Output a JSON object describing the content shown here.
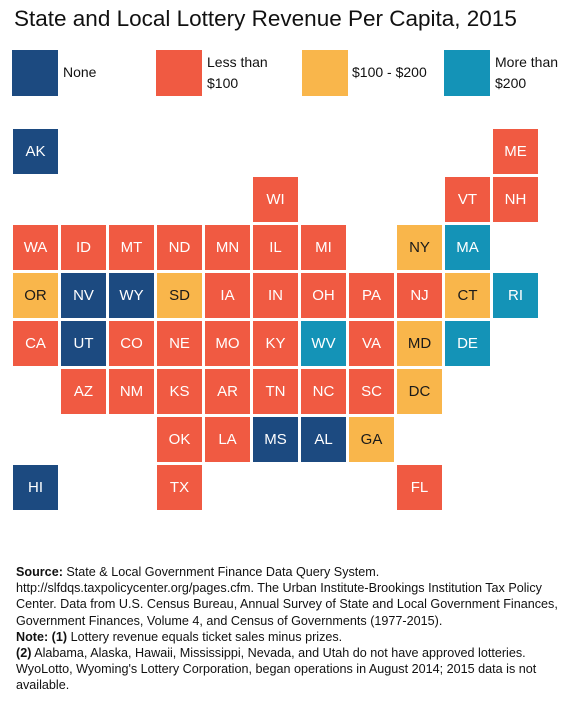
{
  "title": "State and Local Lottery Revenue Per Capita, 2015",
  "colors": {
    "none": "#1c4a80",
    "lt100": "#f05a42",
    "mid": "#f9b64b",
    "gt200": "#1493b7"
  },
  "legend": [
    {
      "key": "none",
      "label": "None"
    },
    {
      "key": "lt100",
      "label": "Less than\n$100"
    },
    {
      "key": "mid",
      "label": "$100 - $200"
    },
    {
      "key": "gt200",
      "label": "More than\n$200"
    }
  ],
  "states": [
    {
      "abbr": "AK",
      "col": 0,
      "row": 0,
      "cat": "none"
    },
    {
      "abbr": "ME",
      "col": 10,
      "row": 0,
      "cat": "lt100"
    },
    {
      "abbr": "WI",
      "col": 5,
      "row": 1,
      "cat": "lt100"
    },
    {
      "abbr": "VT",
      "col": 9,
      "row": 1,
      "cat": "lt100"
    },
    {
      "abbr": "NH",
      "col": 10,
      "row": 1,
      "cat": "lt100"
    },
    {
      "abbr": "WA",
      "col": 0,
      "row": 2,
      "cat": "lt100"
    },
    {
      "abbr": "ID",
      "col": 1,
      "row": 2,
      "cat": "lt100"
    },
    {
      "abbr": "MT",
      "col": 2,
      "row": 2,
      "cat": "lt100"
    },
    {
      "abbr": "ND",
      "col": 3,
      "row": 2,
      "cat": "lt100"
    },
    {
      "abbr": "MN",
      "col": 4,
      "row": 2,
      "cat": "lt100"
    },
    {
      "abbr": "IL",
      "col": 5,
      "row": 2,
      "cat": "lt100"
    },
    {
      "abbr": "MI",
      "col": 6,
      "row": 2,
      "cat": "lt100"
    },
    {
      "abbr": "NY",
      "col": 8,
      "row": 2,
      "cat": "mid"
    },
    {
      "abbr": "MA",
      "col": 9,
      "row": 2,
      "cat": "gt200"
    },
    {
      "abbr": "OR",
      "col": 0,
      "row": 3,
      "cat": "mid"
    },
    {
      "abbr": "NV",
      "col": 1,
      "row": 3,
      "cat": "none"
    },
    {
      "abbr": "WY",
      "col": 2,
      "row": 3,
      "cat": "none"
    },
    {
      "abbr": "SD",
      "col": 3,
      "row": 3,
      "cat": "mid"
    },
    {
      "abbr": "IA",
      "col": 4,
      "row": 3,
      "cat": "lt100"
    },
    {
      "abbr": "IN",
      "col": 5,
      "row": 3,
      "cat": "lt100"
    },
    {
      "abbr": "OH",
      "col": 6,
      "row": 3,
      "cat": "lt100"
    },
    {
      "abbr": "PA",
      "col": 7,
      "row": 3,
      "cat": "lt100"
    },
    {
      "abbr": "NJ",
      "col": 8,
      "row": 3,
      "cat": "lt100"
    },
    {
      "abbr": "CT",
      "col": 9,
      "row": 3,
      "cat": "mid"
    },
    {
      "abbr": "RI",
      "col": 10,
      "row": 3,
      "cat": "gt200"
    },
    {
      "abbr": "CA",
      "col": 0,
      "row": 4,
      "cat": "lt100"
    },
    {
      "abbr": "UT",
      "col": 1,
      "row": 4,
      "cat": "none"
    },
    {
      "abbr": "CO",
      "col": 2,
      "row": 4,
      "cat": "lt100"
    },
    {
      "abbr": "NE",
      "col": 3,
      "row": 4,
      "cat": "lt100"
    },
    {
      "abbr": "MO",
      "col": 4,
      "row": 4,
      "cat": "lt100"
    },
    {
      "abbr": "KY",
      "col": 5,
      "row": 4,
      "cat": "lt100"
    },
    {
      "abbr": "WV",
      "col": 6,
      "row": 4,
      "cat": "gt200"
    },
    {
      "abbr": "VA",
      "col": 7,
      "row": 4,
      "cat": "lt100"
    },
    {
      "abbr": "MD",
      "col": 8,
      "row": 4,
      "cat": "mid"
    },
    {
      "abbr": "DE",
      "col": 9,
      "row": 4,
      "cat": "gt200"
    },
    {
      "abbr": "AZ",
      "col": 1,
      "row": 5,
      "cat": "lt100"
    },
    {
      "abbr": "NM",
      "col": 2,
      "row": 5,
      "cat": "lt100"
    },
    {
      "abbr": "KS",
      "col": 3,
      "row": 5,
      "cat": "lt100"
    },
    {
      "abbr": "AR",
      "col": 4,
      "row": 5,
      "cat": "lt100"
    },
    {
      "abbr": "TN",
      "col": 5,
      "row": 5,
      "cat": "lt100"
    },
    {
      "abbr": "NC",
      "col": 6,
      "row": 5,
      "cat": "lt100"
    },
    {
      "abbr": "SC",
      "col": 7,
      "row": 5,
      "cat": "lt100"
    },
    {
      "abbr": "DC",
      "col": 8,
      "row": 5,
      "cat": "mid"
    },
    {
      "abbr": "OK",
      "col": 3,
      "row": 6,
      "cat": "lt100"
    },
    {
      "abbr": "LA",
      "col": 4,
      "row": 6,
      "cat": "lt100"
    },
    {
      "abbr": "MS",
      "col": 5,
      "row": 6,
      "cat": "none"
    },
    {
      "abbr": "AL",
      "col": 6,
      "row": 6,
      "cat": "none"
    },
    {
      "abbr": "GA",
      "col": 7,
      "row": 6,
      "cat": "mid"
    },
    {
      "abbr": "HI",
      "col": 0,
      "row": 7,
      "cat": "none"
    },
    {
      "abbr": "TX",
      "col": 3,
      "row": 7,
      "cat": "lt100"
    },
    {
      "abbr": "FL",
      "col": 8,
      "row": 7,
      "cat": "lt100"
    }
  ],
  "footnotes": {
    "source_label": "Source:",
    "source_text": " State & Local Government Finance Data Query System. http://slfdqs.taxpolicycenter.org/pages.cfm. The Urban Institute-Brookings Institution Tax Policy Center. Data from U.S. Census Bureau, Annual Survey of State and Local Government Finances, Government Finances, Volume 4, and Census of Governments (1977-2015).",
    "note_label": "Note: (1)",
    "note1_text": " Lottery revenue equals ticket sales minus prizes.",
    "note2_label": "(2)",
    "note2_text": " Alabama, Alaska, Hawaii, Mississippi, Nevada, and Utah do not have approved lotteries. WyoLotto, Wyoming's Lottery Corporation, began operations in August 2014; 2015 data is not available."
  }
}
